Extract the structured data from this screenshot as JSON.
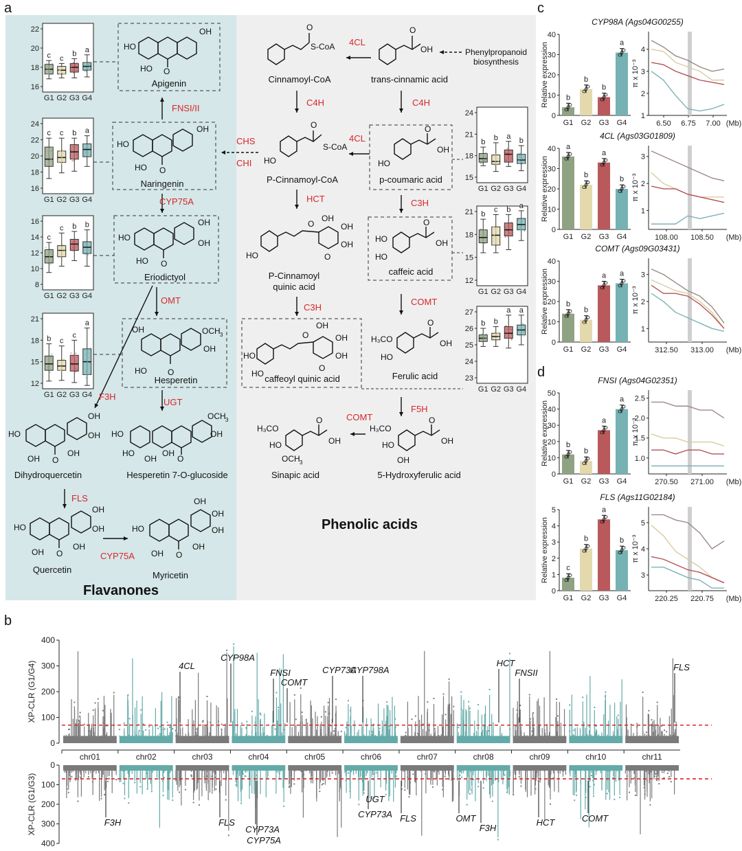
{
  "panels": {
    "a": "a",
    "b": "b",
    "c": "c",
    "d": "d"
  },
  "colors": {
    "g1": "#8fa283",
    "g2": "#e3d9ac",
    "g3": "#b9595c",
    "g4": "#76b2b3",
    "teal": "#63aaa8",
    "gray": "#7a7a7a",
    "enzyme": "#d7262b",
    "flav_bg": "#d5e7e8",
    "phen_bg": "#efefef"
  },
  "groups": [
    "G1",
    "G2",
    "G3",
    "G4"
  ],
  "a_panel": {
    "section_flavanones": "Flavanones",
    "section_phenolic": "Phenolic acids",
    "compounds": {
      "apigenin": "Apigenin",
      "naringenin": "Naringenin",
      "eriodictyol": "Eriodictyol",
      "hesperetin": "Hesperetin",
      "dihydroquercetin": "Dihydroquercetin",
      "hesperetin_glc": "Hesperetin 7-O-glucoside",
      "quercetin": "Quercetin",
      "myricetin": "Myricetin",
      "cinnamoyl_coa": "Cinnamoyl-CoA",
      "trans_cinnamic": "trans-cinnamic acid",
      "p_cinnamoyl_coa": "P-Cinnamoyl-CoA",
      "p_coumaric": "p-coumaric acid",
      "p_cinnamoyl_quinic_1": "P-Cinnamoyl",
      "p_cinnamoyl_quinic_2": "quinic acid",
      "caffeic": "caffeic acid",
      "caffeoyl_quinic": "caffeoyl quinic acid",
      "ferulic": "Ferulic acid",
      "sinapic": "Sinapic acid",
      "hydroxyferulic": "5-Hydroxyferulic acid"
    },
    "phenylpropanoid_1": "Phenylpropanoid",
    "phenylpropanoid_2": "biosynthesis",
    "enzymes": {
      "fnsi_ii": "FNSI/II",
      "cyp75a": "CYP75A",
      "omt": "OMT",
      "f3h": "F3H",
      "ugt": "UGT",
      "fls": "FLS",
      "cyp75a_b": "CYP75A",
      "chs": "CHS",
      "chi": "CHI",
      "fourcl_top": "4CL",
      "fourcl_mid": "4CL",
      "c4h_left": "C4H",
      "c4h_right": "C4H",
      "hct": "HCT",
      "c3h_right": "C3H",
      "c3h_left": "C3H",
      "comt_right": "COMT",
      "f5h": "F5H",
      "comt_bottom": "COMT"
    },
    "boxplots": [
      {
        "id": "apigenin",
        "yticks": [
          "22",
          "20",
          "18",
          "16"
        ],
        "letters": [
          "c",
          "c",
          "b",
          "a"
        ],
        "stats": [
          [
            16.8,
            17.3,
            17.8,
            18.3,
            18.7
          ],
          [
            16.9,
            17.3,
            17.7,
            18.1,
            18.4
          ],
          [
            16.9,
            17.5,
            18.0,
            18.4,
            18.9
          ],
          [
            17.0,
            17.7,
            18.1,
            18.5,
            19.3
          ]
        ]
      },
      {
        "id": "naringenin",
        "yticks": [
          "24",
          "22",
          "20",
          "18",
          "16"
        ],
        "letters": [
          "c",
          "c",
          "b",
          "a"
        ],
        "stats": [
          [
            17.2,
            18.7,
            19.6,
            21.1,
            22.2
          ],
          [
            17.9,
            19.2,
            19.8,
            20.6,
            22.2
          ],
          [
            18.1,
            19.6,
            20.5,
            21.4,
            22.2
          ],
          [
            18.7,
            19.9,
            20.8,
            21.5,
            22.5
          ]
        ]
      },
      {
        "id": "eriodictyol",
        "yticks": [
          "16",
          "14",
          "12",
          "10",
          "8"
        ],
        "letters": [
          "c",
          "c",
          "b",
          "b"
        ],
        "stats": [
          [
            9.5,
            10.7,
            11.5,
            12.4,
            13.3
          ],
          [
            10.3,
            11.5,
            12.3,
            12.9,
            14.5
          ],
          [
            11.0,
            12.3,
            13.1,
            13.7,
            14.7
          ],
          [
            10.3,
            11.9,
            12.7,
            13.4,
            14.9
          ]
        ]
      },
      {
        "id": "hesperetin",
        "yticks": [
          "21",
          "18",
          "15",
          "12"
        ],
        "letters": [
          "b",
          "c",
          "c",
          "a"
        ],
        "stats": [
          [
            12.3,
            13.8,
            14.7,
            15.8,
            17.5
          ],
          [
            12.4,
            13.8,
            14.4,
            15.2,
            17.2
          ],
          [
            12.1,
            13.7,
            14.7,
            15.9,
            18.0
          ],
          [
            11.7,
            13.2,
            15.0,
            16.8,
            19.7
          ]
        ]
      },
      {
        "id": "p_coumaric",
        "yticks": [
          "24",
          "21",
          "18",
          "15"
        ],
        "letters": [
          "b",
          "b",
          "a",
          "b"
        ],
        "stats": [
          [
            16.6,
            17.1,
            17.6,
            18.3,
            19.2
          ],
          [
            15.8,
            16.8,
            17.2,
            18.1,
            19.8
          ],
          [
            16.5,
            17.1,
            18.2,
            18.8,
            20.0
          ],
          [
            15.9,
            16.9,
            17.4,
            18.2,
            19.4
          ]
        ]
      },
      {
        "id": "caffeic",
        "yticks": [
          "21",
          "18",
          "15",
          "12"
        ],
        "letters": [
          "b",
          "c",
          "b",
          "a"
        ],
        "stats": [
          [
            15.6,
            16.9,
            17.6,
            18.6,
            20.0
          ],
          [
            15.6,
            16.6,
            17.9,
            19.0,
            20.6
          ],
          [
            16.0,
            17.8,
            18.6,
            19.5,
            20.6
          ],
          [
            17.2,
            18.6,
            19.3,
            20.1,
            21.1
          ]
        ]
      },
      {
        "id": "ferulic",
        "yticks": [
          "27",
          "26",
          "25",
          "24",
          "23"
        ],
        "letters": [
          "b",
          "b",
          "a",
          "a"
        ],
        "stats": [
          [
            24.9,
            25.2,
            25.4,
            25.6,
            26.0
          ],
          [
            24.9,
            25.3,
            25.5,
            25.7,
            26.1
          ],
          [
            24.8,
            25.4,
            25.7,
            26.1,
            26.8
          ],
          [
            25.0,
            25.6,
            25.9,
            26.2,
            26.8
          ]
        ]
      }
    ]
  },
  "b_panel": {
    "ylabel_top": "XP-CLR (G1/G4)",
    "ylabel_bottom": "XP-CLR (G1/G3)",
    "yticks_top": [
      "400",
      "300",
      "200",
      "100",
      "0"
    ],
    "yticks_bottom": [
      "0",
      "100",
      "200",
      "300",
      "400"
    ],
    "threshold": 70,
    "chromosomes": [
      "chr01",
      "chr02",
      "chr03",
      "chr04",
      "chr05",
      "chr06",
      "chr07",
      "chr08",
      "chr09",
      "chr10",
      "chr11"
    ],
    "genes_top": [
      "4CL",
      "CYP98A",
      "FNSI",
      "COMT",
      "CYP73A",
      "CYP798A",
      "HCT",
      "FNSII",
      "FLS"
    ],
    "genes_bottom": [
      "F3H",
      "FLS",
      "CYP73A",
      "CYP75A",
      "UGT",
      "CYP73A",
      "FLS",
      "OMT",
      "F3H",
      "HCT",
      "COMT"
    ]
  },
  "c_panel": {
    "genes": [
      {
        "title": "CYP98A (Ags04G00255)",
        "ylabel": "Relative expression",
        "yticks": [
          "40",
          "30",
          "20",
          "10",
          "0"
        ],
        "means": [
          4,
          13,
          9,
          31
        ],
        "letters": [
          "b",
          "b",
          "b",
          "a"
        ],
        "xticks": [
          "6.50",
          "6.75",
          "7.00"
        ],
        "pi_yticks": [
          "4",
          "3",
          "2",
          "1"
        ],
        "unit": "(Mb)"
      },
      {
        "title": "4CL (Ags03G01809)",
        "ylabel": "Relative expression",
        "yticks": [
          "40",
          "30",
          "20",
          "10",
          "0"
        ],
        "means": [
          36,
          22,
          33,
          20
        ],
        "letters": [
          "a",
          "b",
          "a",
          "b"
        ],
        "xticks": [
          "108.00",
          "108.50"
        ],
        "pi_yticks": [
          "3",
          "2",
          "1"
        ],
        "unit": "(Mb)"
      },
      {
        "title": "COMT (Ags09G03431)",
        "ylabel": "Relative expression",
        "yticks": [
          "40",
          "30",
          "20",
          "10",
          "0"
        ],
        "means": [
          14,
          11,
          28,
          29
        ],
        "letters": [
          "b",
          "b",
          "a",
          "a"
        ],
        "xticks": [
          "312.50",
          "313.00"
        ],
        "pi_yticks": [
          "3",
          "2",
          "1"
        ],
        "unit": "(Mb)"
      }
    ],
    "pi_label": "π x 10⁻³"
  },
  "d_panel": {
    "genes": [
      {
        "title": "FNSI (Ags04G02351)",
        "ylabel": "Relative expression",
        "yticks": [
          "50",
          "40",
          "30",
          "20",
          "10",
          "0"
        ],
        "means": [
          12,
          8,
          27,
          40
        ],
        "letters": [
          "b",
          "b",
          "a",
          "a"
        ],
        "xticks": [
          "270.50",
          "271.00"
        ],
        "pi_yticks": [
          "2.5",
          "2.0",
          "1.5",
          "1.0"
        ],
        "unit": "(Mb)"
      },
      {
        "title": "FLS (Ags11G02184)",
        "ylabel": "Relative expression",
        "yticks": [
          "5",
          "4",
          "3",
          "2",
          "1",
          "0"
        ],
        "means": [
          0.8,
          2.6,
          4.4,
          2.5
        ],
        "letters": [
          "c",
          "b",
          "a",
          "b"
        ],
        "xticks": [
          "220.25",
          "220.75"
        ],
        "pi_yticks": [
          "5",
          "4",
          "3"
        ],
        "unit": "(Mb)"
      }
    ],
    "pi_label": "π x 10⁻³"
  }
}
